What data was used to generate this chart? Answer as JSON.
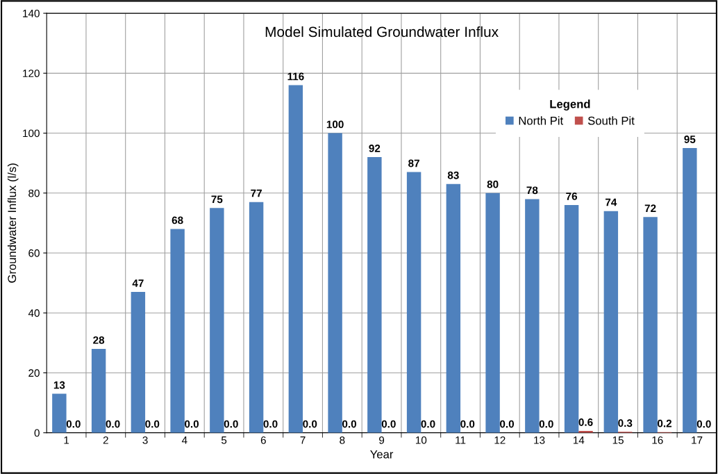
{
  "chart_data": {
    "type": "bar",
    "title": "Model Simulated Groundwater Influx",
    "xlabel": "Year",
    "ylabel": "Groundwater Influx (l/s)",
    "legend_title": "Legend",
    "categories": [
      "1",
      "2",
      "3",
      "4",
      "5",
      "6",
      "7",
      "8",
      "9",
      "10",
      "11",
      "12",
      "13",
      "14",
      "15",
      "16",
      "17"
    ],
    "series": [
      {
        "name": "North Pit",
        "color": "#4f81bd",
        "values": [
          13,
          28,
          47,
          68,
          75,
          77,
          116,
          100,
          92,
          87,
          83,
          80,
          78,
          76,
          74,
          72,
          95
        ],
        "value_labels": [
          "13",
          "28",
          "47",
          "68",
          "75",
          "77",
          "116",
          "100",
          "92",
          "87",
          "83",
          "80",
          "78",
          "76",
          "74",
          "72",
          "95"
        ]
      },
      {
        "name": "South Pit",
        "color": "#c0504d",
        "values": [
          0,
          0,
          0,
          0,
          0,
          0,
          0,
          0,
          0,
          0,
          0,
          0,
          0,
          0.6,
          0.3,
          0.2,
          0
        ],
        "value_labels": [
          "0.0",
          "0.0",
          "0.0",
          "0.0",
          "0.0",
          "0.0",
          "0.0",
          "0.0",
          "0.0",
          "0.0",
          "0.0",
          "0.0",
          "0.0",
          "0.6",
          "0.3",
          "0.2",
          "0.0"
        ]
      }
    ],
    "ylim": [
      0,
      140
    ],
    "yticks": [
      0,
      20,
      40,
      60,
      80,
      100,
      120,
      140
    ],
    "grid": true,
    "legend": "top right"
  }
}
